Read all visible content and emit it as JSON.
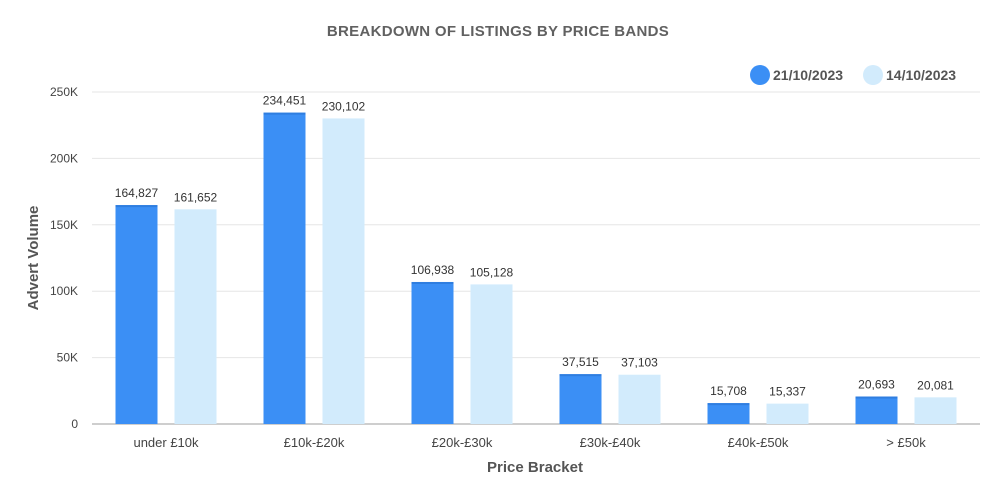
{
  "chart_data": {
    "type": "bar",
    "title": "BREAKDOWN OF LISTINGS BY PRICE BANDS",
    "xlabel": "Price Bracket",
    "ylabel": "Advert Volume",
    "categories": [
      "under £10k",
      "£10k-£20k",
      "£20k-£30k",
      "£30k-£40k",
      "£40k-£50k",
      "> £50k"
    ],
    "series": [
      {
        "name": "21/10/2023",
        "color": "#3b8ff5",
        "values": [
          164827,
          234451,
          106938,
          37515,
          15708,
          20693
        ],
        "labels": [
          "164,827",
          "234,451",
          "106,938",
          "37,515",
          "15,708",
          "20,693"
        ]
      },
      {
        "name": "14/10/2023",
        "color": "#d2ebfc",
        "values": [
          161652,
          230102,
          105128,
          37103,
          15337,
          20081
        ],
        "labels": [
          "161,652",
          "230,102",
          "105,128",
          "37,103",
          "15,337",
          "20,081"
        ]
      }
    ],
    "ylim": [
      0,
      250000
    ],
    "yticks": [
      0,
      50000,
      100000,
      150000,
      200000,
      250000
    ],
    "ytick_labels": [
      "0",
      "50K",
      "100K",
      "150K",
      "200K",
      "250K"
    ],
    "grid": true,
    "legend_position": "top-right"
  }
}
